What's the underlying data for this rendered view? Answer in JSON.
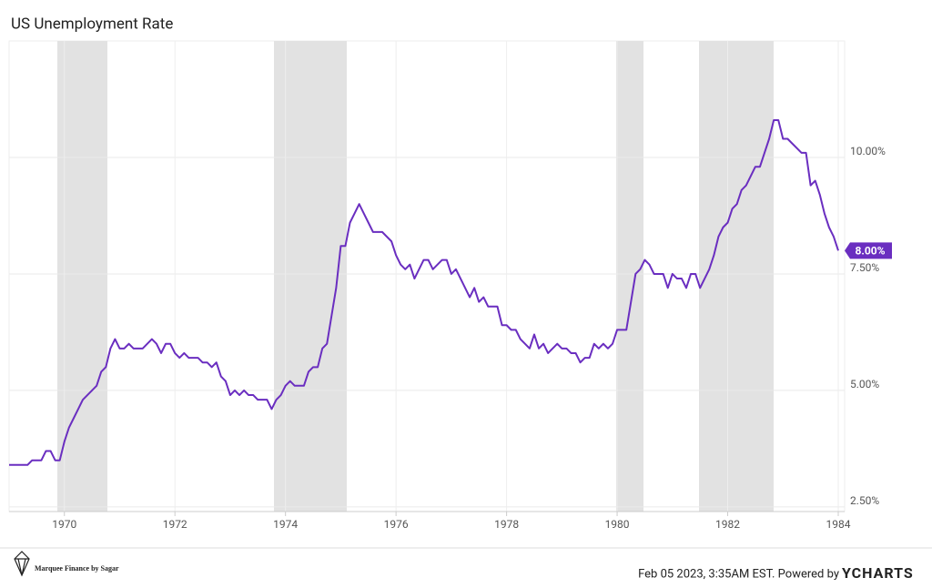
{
  "chart_data": {
    "type": "line",
    "title": "US Unemployment Rate",
    "color": "#6a2ec0",
    "categories": [
      null,
      null,
      null,
      null,
      null,
      null,
      null,
      null,
      null,
      null,
      null,
      null,
      "1970",
      null,
      null,
      null,
      null,
      null,
      null,
      null,
      null,
      null,
      null,
      null,
      null,
      null,
      null,
      null,
      null,
      null,
      null,
      null,
      null,
      null,
      null,
      null,
      "1972",
      null,
      null,
      null,
      null,
      null,
      null,
      null,
      null,
      null,
      null,
      null,
      null,
      null,
      null,
      null,
      null,
      null,
      null,
      null,
      null,
      null,
      null,
      null,
      "1974",
      null,
      null,
      null,
      null,
      null,
      null,
      null,
      null,
      null,
      null,
      null,
      null,
      null,
      null,
      null,
      null,
      null,
      null,
      null,
      null,
      null,
      null,
      null,
      "1976",
      null,
      null,
      null,
      null,
      null,
      null,
      null,
      null,
      null,
      null,
      null,
      null,
      null,
      null,
      null,
      null,
      null,
      null,
      null,
      null,
      null,
      null,
      null,
      "1978",
      null,
      null,
      null,
      null,
      null,
      null,
      null,
      null,
      null,
      null,
      null,
      null,
      null,
      null,
      null,
      null,
      null,
      null,
      null,
      null,
      null,
      null,
      null,
      "1980",
      null,
      null,
      null,
      null,
      null,
      null,
      null,
      null,
      null,
      null,
      null,
      null,
      null,
      null,
      null,
      null,
      null,
      null,
      null,
      null,
      null,
      null,
      null,
      "1982",
      null,
      null,
      null,
      null,
      null,
      null,
      null,
      null,
      null,
      null,
      null,
      null,
      null,
      null,
      null,
      null,
      null,
      null,
      null,
      null,
      null,
      null,
      null,
      "1984"
    ],
    "values": [
      3.4,
      3.4,
      3.4,
      3.4,
      3.4,
      3.5,
      3.5,
      3.5,
      3.7,
      3.7,
      3.5,
      3.5,
      3.9,
      4.2,
      4.4,
      4.6,
      4.8,
      4.9,
      5.0,
      5.1,
      5.4,
      5.5,
      5.9,
      6.1,
      5.9,
      5.9,
      6.0,
      5.9,
      5.9,
      5.9,
      6.0,
      6.1,
      6.0,
      5.8,
      6.0,
      6.0,
      5.8,
      5.7,
      5.8,
      5.7,
      5.7,
      5.7,
      5.6,
      5.6,
      5.5,
      5.6,
      5.3,
      5.2,
      4.9,
      5.0,
      4.9,
      5.0,
      4.9,
      4.9,
      4.8,
      4.8,
      4.8,
      4.6,
      4.8,
      4.9,
      5.1,
      5.2,
      5.1,
      5.1,
      5.1,
      5.4,
      5.5,
      5.5,
      5.9,
      6.0,
      6.6,
      7.2,
      8.1,
      8.1,
      8.6,
      8.8,
      9.0,
      8.8,
      8.6,
      8.4,
      8.4,
      8.4,
      8.3,
      8.2,
      7.9,
      7.7,
      7.6,
      7.7,
      7.4,
      7.6,
      7.8,
      7.8,
      7.6,
      7.7,
      7.8,
      7.8,
      7.5,
      7.6,
      7.4,
      7.2,
      7.0,
      7.2,
      6.9,
      7.0,
      6.8,
      6.8,
      6.8,
      6.4,
      6.4,
      6.3,
      6.3,
      6.1,
      6.0,
      5.9,
      6.2,
      5.9,
      6.0,
      5.8,
      5.9,
      6.0,
      5.9,
      5.9,
      5.8,
      5.8,
      5.6,
      5.7,
      5.7,
      6.0,
      5.9,
      6.0,
      5.9,
      6.0,
      6.3,
      6.3,
      6.3,
      6.9,
      7.5,
      7.6,
      7.8,
      7.7,
      7.5,
      7.5,
      7.5,
      7.2,
      7.5,
      7.4,
      7.4,
      7.2,
      7.5,
      7.5,
      7.2,
      7.4,
      7.6,
      7.9,
      8.3,
      8.5,
      8.6,
      8.9,
      9.0,
      9.3,
      9.4,
      9.6,
      9.8,
      9.8,
      10.1,
      10.4,
      10.8,
      10.8,
      10.4,
      10.4,
      10.3,
      10.2,
      10.1,
      10.1,
      9.4,
      9.5,
      9.2,
      8.8,
      8.5,
      8.3,
      8.0
    ],
    "value_labels": [
      null,
      null,
      null,
      null,
      null,
      null,
      null,
      null,
      null,
      null,
      null,
      null,
      null,
      null,
      null,
      null,
      null,
      null,
      null,
      null,
      null,
      null,
      null,
      null,
      null,
      null,
      null,
      null,
      null,
      null,
      null,
      null,
      null,
      null,
      null,
      null,
      null,
      null,
      null,
      null,
      null,
      null,
      null,
      null,
      null,
      null,
      null,
      null,
      null,
      null,
      null,
      null,
      null,
      null,
      null,
      null,
      null,
      null,
      null,
      null,
      null,
      null,
      null,
      null,
      null,
      null,
      null,
      null,
      null,
      null,
      null,
      null,
      null,
      null,
      null,
      null,
      null,
      null,
      null,
      null,
      null,
      null,
      null,
      null,
      null,
      null,
      null,
      null,
      null,
      null,
      null,
      null,
      null,
      null,
      null,
      null,
      null,
      null,
      null,
      null,
      null,
      null,
      null,
      null,
      null,
      null,
      null,
      null,
      null,
      null,
      null,
      null,
      null,
      null,
      null,
      null,
      null,
      null,
      null,
      null,
      null,
      null,
      null,
      null,
      null,
      null,
      null,
      null,
      null,
      null,
      null,
      null,
      null,
      null,
      null,
      null,
      null,
      null,
      null,
      null,
      null,
      null,
      null,
      null,
      null,
      null,
      null,
      null,
      null,
      null,
      null,
      null,
      null,
      null,
      null,
      null,
      null,
      null,
      null,
      null,
      null,
      null,
      null,
      null,
      null,
      null,
      null,
      null,
      null,
      null,
      null,
      null,
      null,
      null,
      null,
      null,
      null,
      null,
      null,
      null,
      "8.00%"
    ],
    "ylim": [
      2.4,
      12.5
    ],
    "yticks": [
      {
        "value": 2.5,
        "label": "2.50%"
      },
      {
        "value": 5,
        "label": "5.00%"
      },
      {
        "value": 7.5,
        "label": "7.50%"
      },
      {
        "value": 10,
        "label": "10.00%"
      }
    ],
    "grid": true
  },
  "footer": {
    "brand": "Marquee Finance by Sagar",
    "timestamp": "Feb 05 2023, 3:35AM EST. Powered by",
    "logo": "YCHARTS"
  }
}
